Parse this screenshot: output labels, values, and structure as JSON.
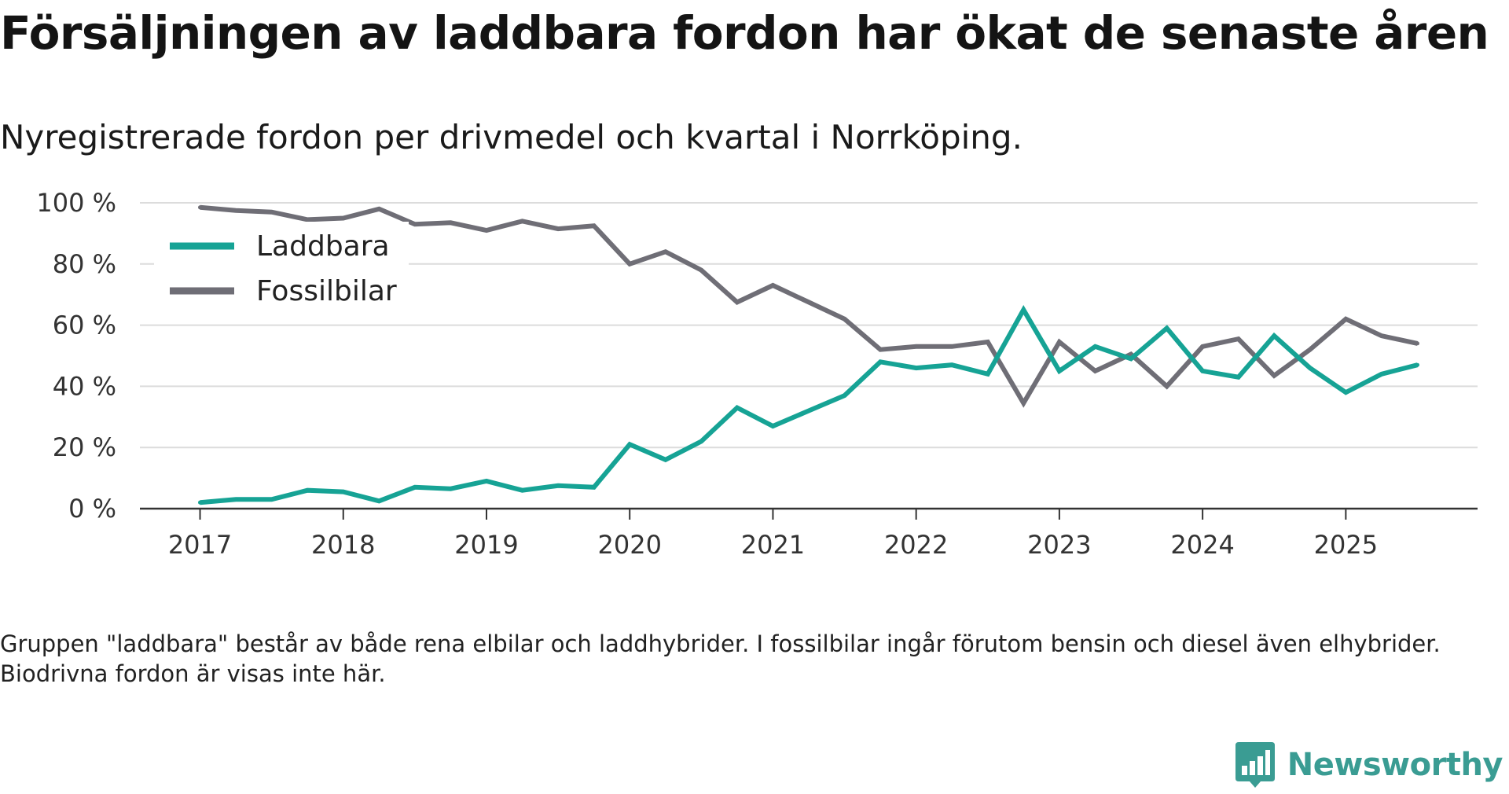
{
  "title": "Försäljningen av laddbara fordon har ökat de senaste åren",
  "subtitle": "Nyregistrerade fordon per drivmedel och kvartal i Norrköping.",
  "footnote": "Gruppen \"laddbara\" består av både rena elbilar och laddhybrider. I fossilbilar ingår förutom bensin och diesel även elhybrider. Biodrivna fordon är visas inte här.",
  "brand": {
    "name": "Newsworthy",
    "icon": "newsworthy-logo-icon",
    "color": "#3a9c93"
  },
  "chart_data": {
    "type": "line",
    "title": "Försäljningen av laddbara fordon har ökat de senaste åren",
    "subtitle": "Nyregistrerade fordon per drivmedel och kvartal i Norrköping.",
    "xlabel": "",
    "ylabel": "",
    "x": [
      2017.0,
      2017.25,
      2017.5,
      2017.75,
      2018.0,
      2018.25,
      2018.5,
      2018.75,
      2019.0,
      2019.25,
      2019.5,
      2019.75,
      2020.0,
      2020.25,
      2020.5,
      2020.75,
      2021.0,
      2021.25,
      2021.5,
      2021.75,
      2022.0,
      2022.25,
      2022.5,
      2022.75,
      2023.0,
      2023.25,
      2023.5,
      2023.75,
      2024.0,
      2024.25,
      2024.5,
      2024.75,
      2025.0,
      2025.25,
      2025.5
    ],
    "xlim": [
      2016.58,
      2025.92
    ],
    "xticks": [
      2017,
      2018,
      2019,
      2020,
      2021,
      2022,
      2023,
      2024,
      2025
    ],
    "xtick_labels": [
      "2017",
      "2018",
      "2019",
      "2020",
      "2021",
      "2022",
      "2023",
      "2024",
      "2025"
    ],
    "ylim": [
      0,
      100
    ],
    "yticks": [
      0,
      20,
      40,
      60,
      80,
      100
    ],
    "ytick_labels": [
      "0 %",
      "20 %",
      "40 %",
      "60 %",
      "80 %",
      "100 %"
    ],
    "grid": true,
    "legend_position": "top-left",
    "series": [
      {
        "name": "Laddbara",
        "color": "#16a395",
        "values": [
          2,
          3,
          3,
          6,
          5.5,
          2.5,
          7,
          6.5,
          9,
          6,
          7.5,
          7,
          21,
          16,
          22,
          33,
          27,
          32,
          37,
          48,
          46,
          47,
          44,
          65,
          45,
          53,
          49,
          59,
          45,
          43,
          56.5,
          46,
          38,
          44,
          47
        ]
      },
      {
        "name": "Fossilbilar",
        "color": "#6f6e76",
        "values": [
          98.5,
          97.5,
          97,
          94.5,
          95,
          98,
          93,
          93.5,
          91,
          94,
          91.5,
          92.5,
          80,
          84,
          78,
          67.5,
          73,
          67.5,
          62,
          52,
          53,
          53,
          54.5,
          34.5,
          54.5,
          45,
          50.5,
          40,
          53,
          55.5,
          43.5,
          52,
          62,
          56.5,
          54
        ]
      }
    ]
  }
}
